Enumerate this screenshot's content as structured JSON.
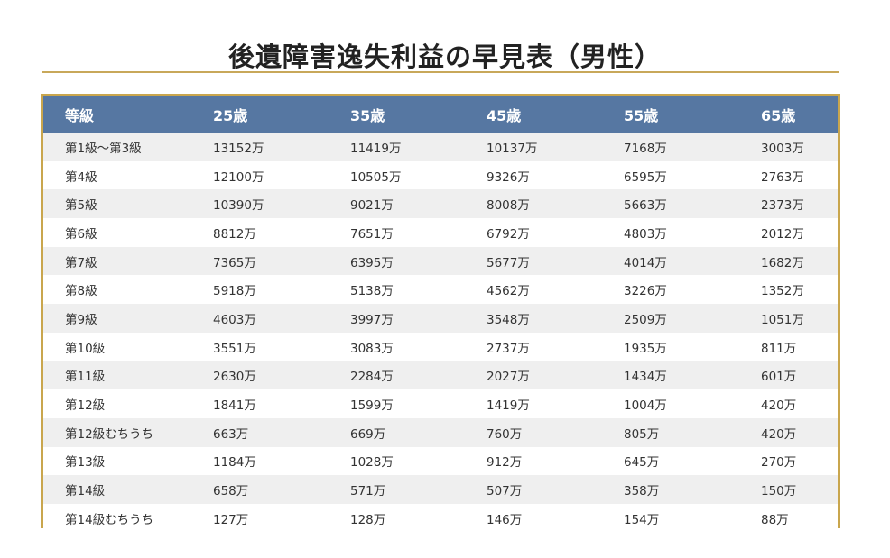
{
  "page": {
    "title": "後遺障害逸失利益の早見表（男性）"
  },
  "colors": {
    "header_bg": "#5677a2",
    "border_gold": "#c9a64d",
    "row_alt_bg": "#efefef"
  },
  "table": {
    "headers": [
      "等級",
      "25歳",
      "35歳",
      "45歳",
      "55歳",
      "65歳"
    ],
    "rows": [
      [
        "第1級〜第3級",
        "13152万",
        "11419万",
        "10137万",
        "7168万",
        "3003万"
      ],
      [
        "第4級",
        "12100万",
        "10505万",
        "9326万",
        "6595万",
        "2763万"
      ],
      [
        "第5級",
        "10390万",
        "9021万",
        "8008万",
        "5663万",
        "2373万"
      ],
      [
        "第6級",
        "8812万",
        "7651万",
        "6792万",
        "4803万",
        "2012万"
      ],
      [
        "第7級",
        "7365万",
        "6395万",
        "5677万",
        "4014万",
        "1682万"
      ],
      [
        "第8級",
        "5918万",
        "5138万",
        "4562万",
        "3226万",
        "1352万"
      ],
      [
        "第9級",
        "4603万",
        "3997万",
        "3548万",
        "2509万",
        "1051万"
      ],
      [
        "第10級",
        "3551万",
        "3083万",
        "2737万",
        "1935万",
        "811万"
      ],
      [
        "第11級",
        "2630万",
        "2284万",
        "2027万",
        "1434万",
        "601万"
      ],
      [
        "第12級",
        "1841万",
        "1599万",
        "1419万",
        "1004万",
        "420万"
      ],
      [
        "第12級むちうち",
        "663万",
        "669万",
        "760万",
        "805万",
        "420万"
      ],
      [
        "第13級",
        "1184万",
        "1028万",
        "912万",
        "645万",
        "270万"
      ],
      [
        "第14級",
        "658万",
        "571万",
        "507万",
        "358万",
        "150万"
      ],
      [
        "第14級むちうち",
        "127万",
        "128万",
        "146万",
        "154万",
        "88万"
      ]
    ]
  }
}
